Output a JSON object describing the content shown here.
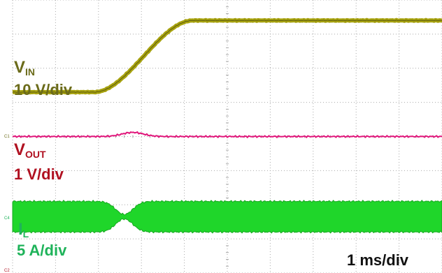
{
  "chart_data": {
    "type": "line",
    "time_scale": "1 ms/div",
    "grid": true,
    "divisions": {
      "x": 10,
      "y": 8
    },
    "x_unit": "div",
    "xlim": [
      0,
      10
    ],
    "ylim": [
      0,
      8
    ],
    "channels": [
      {
        "marker": "C1",
        "label_main": "V",
        "label_sub": "IN",
        "scale": "10 V/div",
        "color": "#6b6b1a",
        "trace_color": "#a7a20e",
        "trace": "ramp",
        "initial_level_div": 5.3,
        "final_level_div": 7.4,
        "ramp_start_div": 1.9,
        "ramp_end_div": 4.2
      },
      {
        "marker": "C1",
        "label_main": "V",
        "label_sub": "OUT",
        "scale": "1 V/div",
        "color": "#b01020",
        "trace_color": "#e0157a",
        "trace": "flat",
        "level_div": 4.0,
        "bump_at_div": 2.8,
        "bump_height_div": 0.12
      },
      {
        "marker": "C4",
        "label_main": "I",
        "label_sub": "L",
        "scale": "5 A/div",
        "color": "#1fb35a",
        "trace_color": "#1fd62a",
        "trace": "band",
        "band_top_div": 2.1,
        "band_bottom_div": 1.2,
        "gap_at_div": 2.6
      }
    ],
    "ground_marker": "C2"
  }
}
